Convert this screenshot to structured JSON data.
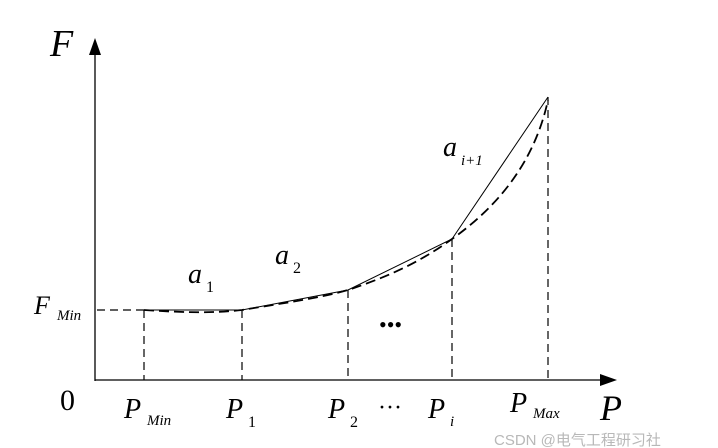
{
  "axes": {
    "y_label": "F",
    "x_label": "P",
    "origin_label": "0",
    "y_min_label": {
      "main": "F",
      "sub": "Min"
    }
  },
  "x_ticks": [
    {
      "main": "P",
      "sub": "Min"
    },
    {
      "main": "P",
      "sub": "1"
    },
    {
      "main": "P",
      "sub": "2"
    },
    {
      "main": "P",
      "sub": "i"
    },
    {
      "main": "P",
      "sub": "Max"
    }
  ],
  "x_ellipsis": "···",
  "region_ellipsis": "•••",
  "segment_labels": [
    {
      "main": "a",
      "sub": "1"
    },
    {
      "main": "a",
      "sub": "2"
    },
    {
      "main": "a",
      "sub": "i+1"
    }
  ],
  "watermark": "CSDN @电气工程研习社"
}
